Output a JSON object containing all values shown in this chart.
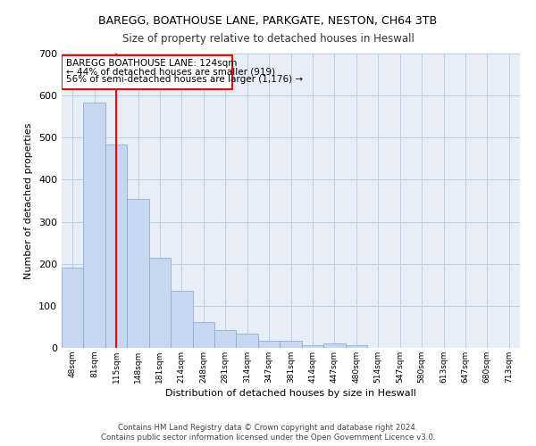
{
  "title1": "BAREGG, BOATHOUSE LANE, PARKGATE, NESTON, CH64 3TB",
  "title2": "Size of property relative to detached houses in Heswall",
  "xlabel": "Distribution of detached houses by size in Heswall",
  "ylabel": "Number of detached properties",
  "categories": [
    "48sqm",
    "81sqm",
    "115sqm",
    "148sqm",
    "181sqm",
    "214sqm",
    "248sqm",
    "281sqm",
    "314sqm",
    "347sqm",
    "381sqm",
    "414sqm",
    "447sqm",
    "480sqm",
    "514sqm",
    "547sqm",
    "580sqm",
    "613sqm",
    "647sqm",
    "680sqm",
    "713sqm"
  ],
  "values": [
    190,
    583,
    483,
    355,
    215,
    135,
    62,
    43,
    35,
    18,
    17,
    7,
    11,
    6,
    0,
    0,
    0,
    0,
    0,
    0,
    0
  ],
  "bar_color": "#c5d8f0",
  "bar_edge_color": "#8ab0d8",
  "marker_label": "BAREGG BOATHOUSE LANE: 124sqm",
  "marker_line1": "← 44% of detached houses are smaller (919)",
  "marker_line2": "56% of semi-detached houses are larger (1,176) →",
  "ylim": [
    0,
    700
  ],
  "yticks": [
    0,
    100,
    200,
    300,
    400,
    500,
    600,
    700
  ],
  "footer1": "Contains HM Land Registry data © Crown copyright and database right 2024.",
  "footer2": "Contains public sector information licensed under the Open Government Licence v3.0.",
  "bg_color": "#e8eef8",
  "grid_color": "#c0cce0"
}
